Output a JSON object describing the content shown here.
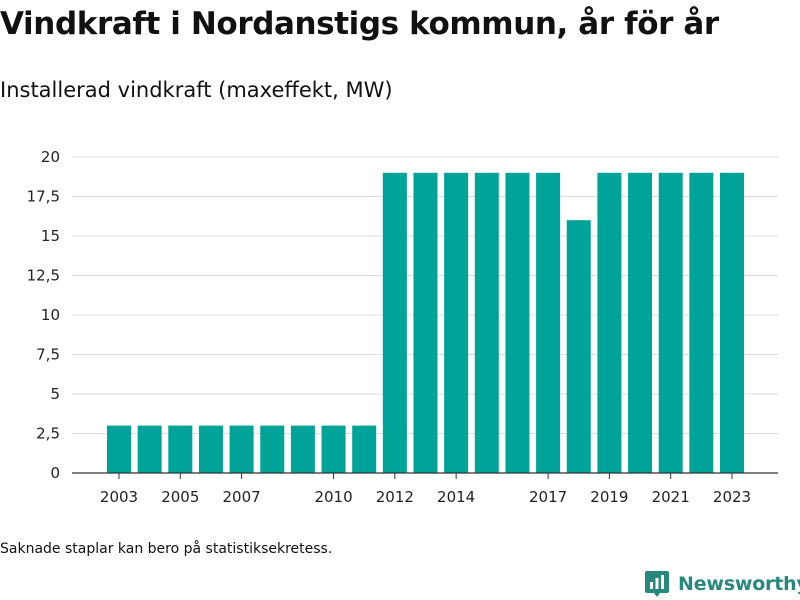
{
  "header": {
    "title": "Vindkraft i Nordanstigs kommun, år för år",
    "subtitle": "Installerad vindkraft (maxeffekt, MW)"
  },
  "footer": {
    "note": "Saknade staplar kan bero på statistiksekretess.",
    "brand": "Newsworthy"
  },
  "icons": {
    "brand_logo": "bar-chart-pin-icon"
  },
  "colors": {
    "bar": "#00a398",
    "brand": "#27897e",
    "grid": "#dddddd",
    "axis": "#333333"
  },
  "chart_data": {
    "type": "bar",
    "title": "Vindkraft i Nordanstigs kommun, år för år",
    "subtitle": "Installerad vindkraft (maxeffekt, MW)",
    "xlabel": "",
    "ylabel": "",
    "categories": [
      "2003",
      "2004",
      "2005",
      "2006",
      "2007",
      "2008",
      "2009",
      "2010",
      "2011",
      "2012",
      "2013",
      "2014",
      "2015",
      "2016",
      "2017",
      "2018",
      "2019",
      "2020",
      "2021",
      "2022",
      "2023"
    ],
    "values": [
      3,
      3,
      3,
      3,
      3,
      3,
      3,
      3,
      3,
      19,
      19,
      19,
      19,
      19,
      19,
      16,
      19,
      19,
      19,
      19,
      19
    ],
    "ylim": [
      0,
      20
    ],
    "yticks": [
      0,
      2.5,
      5,
      7.5,
      10,
      12.5,
      15,
      17.5,
      20
    ],
    "ytick_labels": [
      "0",
      "2,5",
      "5",
      "7,5",
      "10",
      "12,5",
      "15",
      "17,5",
      "20"
    ],
    "xtick_labels": [
      "2003",
      "2005",
      "2007",
      "2010",
      "2012",
      "2014",
      "2017",
      "2019",
      "2021",
      "2023"
    ],
    "grid": true,
    "legend": "none"
  }
}
